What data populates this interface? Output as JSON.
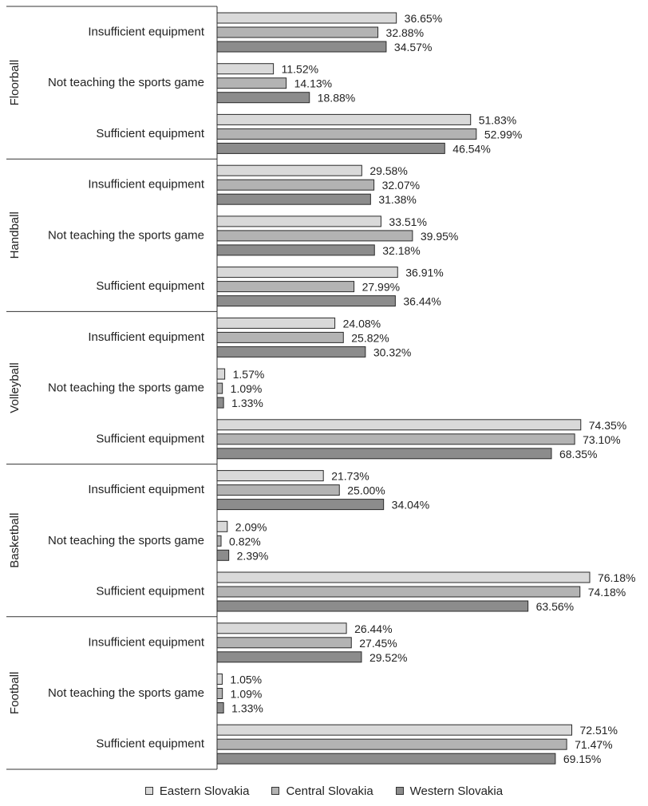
{
  "chart_data": {
    "type": "bar",
    "orientation": "horizontal",
    "title": "",
    "xlabel": "",
    "ylabel": "",
    "xlim": [
      0,
      100
    ],
    "grid": false,
    "legend_placement": "bottom",
    "value_suffix": "%",
    "series": [
      {
        "name": "Eastern Slovakia",
        "color": "#d9d9d9"
      },
      {
        "name": "Central Slovakia",
        "color": "#b3b3b3"
      },
      {
        "name": "Western Slovakia",
        "color": "#8c8c8c"
      }
    ],
    "groups": [
      {
        "name": "Floorball",
        "categories": [
          {
            "label": "Insufficient equipment",
            "values": [
              36.65,
              32.88,
              34.57
            ],
            "value_labels": [
              "36.65%",
              "32.88%",
              "34.57%"
            ]
          },
          {
            "label": "Not teaching the sports game",
            "values": [
              11.52,
              14.13,
              18.88
            ],
            "value_labels": [
              "11.52%",
              "14.13%",
              "18.88%"
            ]
          },
          {
            "label": "Sufficient equipment",
            "values": [
              51.83,
              52.99,
              46.54
            ],
            "value_labels": [
              "51.83%",
              "52.99%",
              "46.54%"
            ]
          }
        ]
      },
      {
        "name": "Handball",
        "categories": [
          {
            "label": "Insufficient equipment",
            "values": [
              29.58,
              32.07,
              31.38
            ],
            "value_labels": [
              "29.58%",
              "32.07%",
              "31.38%"
            ]
          },
          {
            "label": "Not teaching the sports game",
            "values": [
              33.51,
              39.95,
              32.18
            ],
            "value_labels": [
              "33.51%",
              "39.95%",
              "32.18%"
            ]
          },
          {
            "label": "Sufficient equipment",
            "values": [
              36.91,
              27.99,
              36.44
            ],
            "value_labels": [
              "36.91%",
              "27.99%",
              "36.44%"
            ]
          }
        ]
      },
      {
        "name": "Volleyball",
        "categories": [
          {
            "label": "Insufficient equipment",
            "values": [
              24.08,
              25.82,
              30.32
            ],
            "value_labels": [
              "24.08%",
              "25.82%",
              "30.32%"
            ]
          },
          {
            "label": "Not teaching the sports game",
            "values": [
              1.57,
              1.09,
              1.33
            ],
            "value_labels": [
              "1.57%",
              "1.09%",
              "1.33%"
            ]
          },
          {
            "label": "Sufficient equipment",
            "values": [
              74.35,
              73.1,
              68.35
            ],
            "value_labels": [
              "74.35%",
              "73.10%",
              "68.35%"
            ]
          }
        ]
      },
      {
        "name": "Basketball",
        "categories": [
          {
            "label": "Insufficient equipment",
            "values": [
              21.73,
              25.0,
              34.04
            ],
            "value_labels": [
              "21.73%",
              "25.00%",
              "34.04%"
            ]
          },
          {
            "label": "Not teaching the sports game",
            "values": [
              2.09,
              0.82,
              2.39
            ],
            "value_labels": [
              "2.09%",
              "0.82%",
              "2.39%"
            ]
          },
          {
            "label": "Sufficient equipment",
            "values": [
              76.18,
              74.18,
              63.56
            ],
            "value_labels": [
              "76.18%",
              "74.18%",
              "63.56%"
            ]
          }
        ]
      },
      {
        "name": "Football",
        "categories": [
          {
            "label": "Insufficient equipment",
            "values": [
              26.44,
              27.45,
              29.52
            ],
            "value_labels": [
              "26.44%",
              "27.45%",
              "29.52%"
            ]
          },
          {
            "label": "Not teaching the sports game",
            "values": [
              1.05,
              1.09,
              1.33
            ],
            "value_labels": [
              "1.05%",
              "1.09%",
              "1.33%"
            ]
          },
          {
            "label": "Sufficient equipment",
            "values": [
              72.51,
              71.47,
              69.15
            ],
            "value_labels": [
              "72.51%",
              "71.47%",
              "69.15%"
            ]
          }
        ]
      }
    ]
  }
}
